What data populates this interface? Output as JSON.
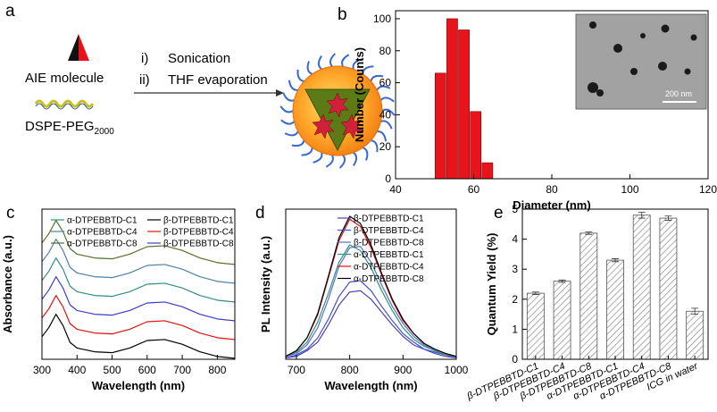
{
  "diagram": {
    "panel": "a",
    "aie_label": "AIE molecule",
    "lipid_label": {
      "text": "DSPE-PEG",
      "subscript": "2000"
    },
    "steps": [
      {
        "number": "i)",
        "text": "Sonication"
      },
      {
        "number": "ii)",
        "text": "THF evaporation"
      }
    ]
  },
  "chart_data": [
    {
      "panel": "b",
      "type": "histogram",
      "xlabel": "Diameter (nm)",
      "ylabel": "Number (Counts)",
      "bins": [
        50,
        53,
        56,
        59,
        62,
        65
      ],
      "values": [
        66,
        100,
        93,
        42,
        10
      ],
      "color": "#e8141b",
      "xlim": [
        40,
        120
      ],
      "xticks": [
        40,
        60,
        80,
        100,
        120
      ],
      "ylim": [
        0,
        105
      ],
      "yticks": [
        0,
        20,
        40,
        60,
        80,
        100
      ],
      "inset_scale": "200 nm"
    },
    {
      "panel": "c",
      "type": "line",
      "xlabel": "Wavelength (nm)",
      "ylabel": "Absorbance (a.u.)",
      "xlim": [
        300,
        850
      ],
      "xticks": [
        300,
        400,
        500,
        600,
        700,
        800
      ],
      "ylim": [
        0,
        8
      ],
      "legend": "top-two-column",
      "x": [
        300,
        320,
        340,
        360,
        380,
        400,
        450,
        500,
        550,
        600,
        650,
        700,
        750,
        800,
        850
      ],
      "series": [
        {
          "name": "α-DTPEBBTD-C1",
          "color": "#2f8f7f",
          "values": [
            4.2,
            4.7,
            5.4,
            4.8,
            3.9,
            3.6,
            3.4,
            3.35,
            3.6,
            4.0,
            4.05,
            3.8,
            3.4,
            3.15,
            3.05
          ]
        },
        {
          "name": "β-DTPEBBTD-C1",
          "color": "#000000",
          "values": [
            1.2,
            1.7,
            2.4,
            1.8,
            0.9,
            0.6,
            0.4,
            0.35,
            0.6,
            1.0,
            1.05,
            0.8,
            0.4,
            0.15,
            0.05
          ]
        },
        {
          "name": "α-DTPEBBTD-C4",
          "color": "#4f7fa8",
          "values": [
            5.2,
            5.7,
            6.4,
            5.8,
            4.9,
            4.6,
            4.4,
            4.35,
            4.6,
            5.0,
            5.05,
            4.8,
            4.4,
            4.15,
            4.05
          ]
        },
        {
          "name": "β-DTPEBBTD-C4",
          "color": "#e01010",
          "values": [
            2.2,
            2.7,
            3.4,
            2.8,
            1.9,
            1.6,
            1.4,
            1.35,
            1.6,
            2.0,
            2.05,
            1.8,
            1.4,
            1.15,
            1.05
          ]
        },
        {
          "name": "α-DTPEBBTD-C8",
          "color": "#55702a",
          "values": [
            6.2,
            6.7,
            7.4,
            6.8,
            5.9,
            5.6,
            5.4,
            5.35,
            5.6,
            6.0,
            6.05,
            5.8,
            5.4,
            5.15,
            5.05
          ]
        },
        {
          "name": "β-DTPEBBTD-C8",
          "color": "#3b3bd0",
          "values": [
            3.2,
            3.7,
            4.4,
            3.8,
            2.9,
            2.6,
            2.4,
            2.35,
            2.6,
            3.0,
            3.05,
            2.8,
            2.4,
            2.15,
            2.05
          ]
        }
      ]
    },
    {
      "panel": "d",
      "type": "line",
      "xlabel": "Wavelength (nm)",
      "ylabel": "PL Intensity (a.u.)",
      "xlim": [
        680,
        1000
      ],
      "xticks": [
        700,
        800,
        900,
        1000
      ],
      "ylim": [
        0,
        1.05
      ],
      "legend": "top-right",
      "x": [
        680,
        700,
        720,
        740,
        760,
        780,
        800,
        820,
        840,
        860,
        880,
        900,
        920,
        940,
        960,
        980,
        1000
      ],
      "series": [
        {
          "name": "β-DTPEBBTD-C1",
          "color": "#4a3fb0",
          "values": [
            0.01,
            0.02,
            0.06,
            0.12,
            0.24,
            0.38,
            0.47,
            0.48,
            0.42,
            0.33,
            0.24,
            0.16,
            0.1,
            0.07,
            0.04,
            0.02,
            0.01
          ]
        },
        {
          "name": "β-DTPEBBTD-C4",
          "color": "#3f4fd8",
          "values": [
            0.01,
            0.03,
            0.07,
            0.15,
            0.28,
            0.44,
            0.54,
            0.55,
            0.48,
            0.37,
            0.27,
            0.18,
            0.12,
            0.07,
            0.05,
            0.03,
            0.01
          ]
        },
        {
          "name": "β-DTPEBBTD-C8",
          "color": "#5a6fc8",
          "values": [
            0.02,
            0.04,
            0.1,
            0.22,
            0.42,
            0.65,
            0.78,
            0.79,
            0.68,
            0.52,
            0.37,
            0.25,
            0.16,
            0.1,
            0.06,
            0.03,
            0.02
          ]
        },
        {
          "name": "α-DTPEBBTD-C1",
          "color": "#2f8f7f",
          "values": [
            0.02,
            0.05,
            0.12,
            0.26,
            0.46,
            0.68,
            0.8,
            0.76,
            0.64,
            0.48,
            0.34,
            0.22,
            0.14,
            0.09,
            0.06,
            0.03,
            0.02
          ]
        },
        {
          "name": "α-DTPEBBTD-C4",
          "color": "#e01010",
          "values": [
            0.02,
            0.06,
            0.15,
            0.31,
            0.57,
            0.83,
            0.98,
            0.93,
            0.78,
            0.59,
            0.41,
            0.27,
            0.18,
            0.11,
            0.07,
            0.04,
            0.02
          ]
        },
        {
          "name": "α-DTPEBBTD-C8",
          "color": "#000000",
          "values": [
            0.02,
            0.06,
            0.15,
            0.32,
            0.58,
            0.85,
            1.0,
            0.95,
            0.8,
            0.6,
            0.42,
            0.28,
            0.18,
            0.11,
            0.07,
            0.04,
            0.02
          ]
        }
      ]
    },
    {
      "panel": "e",
      "type": "bar",
      "ylabel": "Quantum Yield (%)",
      "categories": [
        "β-DTPEBBTD-C1",
        "β-DTPEBBTD-C4",
        "β-DTPEBBTD-C8",
        "α-DTPEBBTD-C1",
        "α-DTPEBBTD-C4",
        "α-DTPEBBTD-C8",
        "ICG in water"
      ],
      "values": [
        2.2,
        2.6,
        4.2,
        3.3,
        4.8,
        4.7,
        1.6
      ],
      "errors": [
        0.04,
        0.04,
        0.04,
        0.05,
        0.1,
        0.07,
        0.1
      ],
      "color": "#555555",
      "fill": "hatch",
      "ylim": [
        0,
        5
      ],
      "yticks": [
        0,
        1,
        2,
        3,
        4,
        5
      ]
    }
  ]
}
